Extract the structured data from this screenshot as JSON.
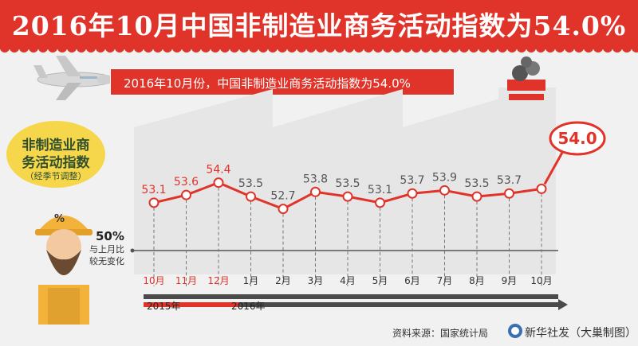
{
  "title": "2016年10月中国非制造业商务活动指数为54.0%",
  "subtitle": "2016年10月份，中国非制造业商务活动指数为54.0%",
  "badge": {
    "line1": "非制造业商",
    "line2": "务活动指数",
    "line3": "（经季节调整）"
  },
  "reference": {
    "value": "50%",
    "note_line1": "与上月比",
    "note_line2": "较无变化"
  },
  "year_labels": [
    "2015年",
    "2016年"
  ],
  "hardhat_symbol": "%",
  "latest_callout": "54.0",
  "source": "资料来源：国家统计局",
  "credit": "新华社发（大巢制图）",
  "colors": {
    "brand_red": "#e0332a",
    "line_red": "#e0332a",
    "marker_fill": "#ffffff",
    "factory": "#e6e6e6",
    "timeline_dark": "#4a4a4a"
  },
  "icons": [
    "airplane-icon",
    "factory-icon",
    "worker-icon",
    "xinhua-logo-icon"
  ],
  "chart_data": {
    "type": "line",
    "categories": [
      "10月",
      "11月",
      "12月",
      "1月",
      "2月",
      "3月",
      "4月",
      "5月",
      "6月",
      "7月",
      "8月",
      "9月",
      "10月"
    ],
    "values": [
      53.1,
      53.6,
      54.4,
      53.5,
      52.7,
      53.8,
      53.5,
      53.1,
      53.7,
      53.9,
      53.5,
      53.7,
      54.0
    ],
    "value_labels": [
      "53.1",
      "53.6",
      "54.4",
      "53.5",
      "52.7",
      "53.8",
      "53.5",
      "53.1",
      "53.7",
      "53.9",
      "53.5",
      "53.7",
      "54.0"
    ],
    "highlighted_categories": [
      0,
      1,
      2
    ],
    "reference_line": 50,
    "ylim": [
      49.5,
      55
    ],
    "grid": false,
    "xlabel": "",
    "ylabel": ""
  }
}
